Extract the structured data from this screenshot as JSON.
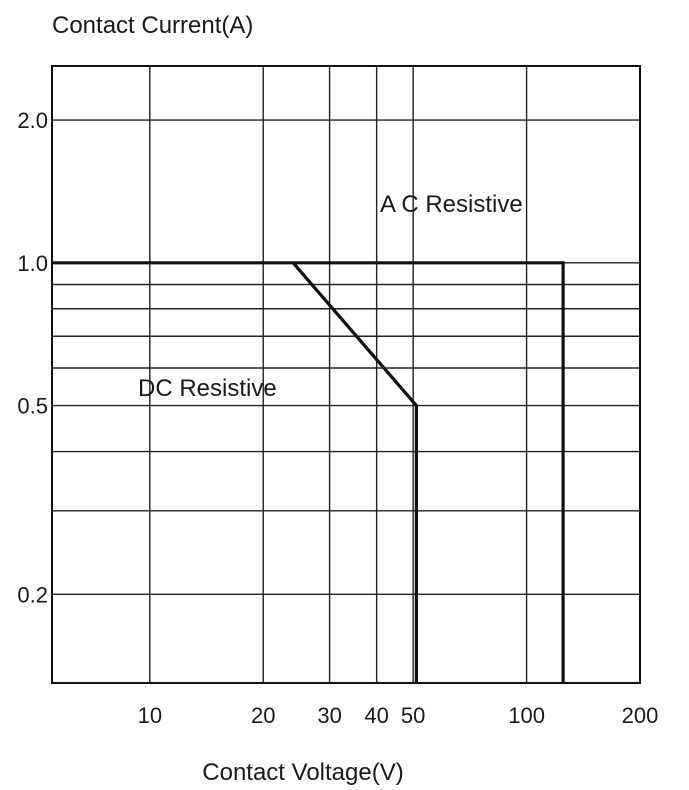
{
  "chart_data": {
    "type": "line",
    "title": "",
    "ylabel": "Contact Current(A)",
    "xlabel": "Contact Voltage(V)",
    "x_scale": "log",
    "y_scale": "log",
    "xlim": [
      5.5,
      200
    ],
    "ylim": [
      0.13,
      2.6
    ],
    "x_ticks": [
      {
        "value": 10,
        "label": "10"
      },
      {
        "value": 20,
        "label": "20"
      },
      {
        "value": 30,
        "label": "30"
      },
      {
        "value": 40,
        "label": "40"
      },
      {
        "value": 50,
        "label": "50"
      },
      {
        "value": 100,
        "label": "100"
      },
      {
        "value": 200,
        "label": "200"
      }
    ],
    "y_ticks": [
      {
        "value": 2.0,
        "label": "2.0"
      },
      {
        "value": 1.0,
        "label": "1.0"
      },
      {
        "value": 0.5,
        "label": "0.5"
      },
      {
        "value": 0.2,
        "label": "0.2"
      }
    ],
    "grid": true,
    "x_gridlines": [
      10,
      20,
      30,
      40,
      50,
      100
    ],
    "y_gridlines": [
      2.0,
      1.0,
      0.9,
      0.8,
      0.7,
      0.6,
      0.5,
      0.4,
      0.3,
      0.2
    ],
    "series": [
      {
        "name": "A C Resistive",
        "x": [
          5.5,
          125,
          125
        ],
        "y": [
          1.0,
          1.0,
          0.13
        ]
      },
      {
        "name": "DC Resistive",
        "x": [
          24,
          51,
          51
        ],
        "y": [
          1.0,
          0.5,
          0.13
        ]
      }
    ],
    "colors": {
      "line": "#111111",
      "grid": "#222222"
    }
  }
}
